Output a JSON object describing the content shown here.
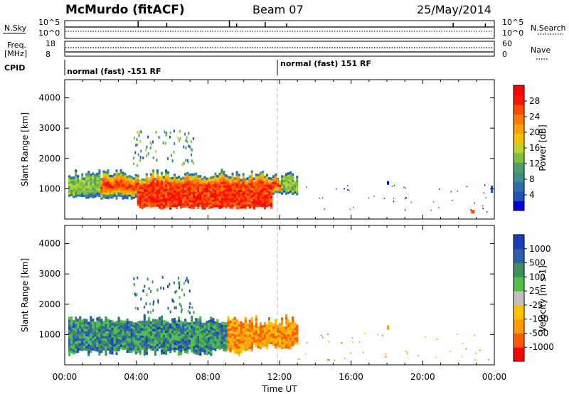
{
  "header": {
    "station": "McMurdo (fitACF)",
    "beam": "Beam 07",
    "date": "25/May/2014"
  },
  "status_panels": {
    "nsky_label": "N.Sky",
    "nsky_ticks": [
      "10^5",
      "10^0"
    ],
    "nsearch_label": "N.Search",
    "nsearch_ticks": [
      "10^5",
      "10^0"
    ],
    "freq_label": "Freq.",
    "freq_unit": "[MHz]",
    "freq_ticks": [
      "18",
      "8"
    ],
    "nave_label": "Nave",
    "nave_ticks": [
      "60",
      "0"
    ],
    "cpid_label": "CPID",
    "cpid_segments": [
      {
        "start_hour": 0,
        "label": "normal (fast) -151 RF"
      },
      {
        "start_hour": 12,
        "label": "normal (fast) 151 RF"
      }
    ]
  },
  "chart_data": [
    {
      "type": "heatmap",
      "title": "",
      "xlabel": "",
      "ylabel": "Slant Range [km]",
      "xlim": [
        0,
        24
      ],
      "ylim": [
        0,
        4600
      ],
      "x_ticks": [
        "00:00",
        "04:00",
        "08:00",
        "12:00",
        "16:00",
        "20:00",
        "00:00"
      ],
      "y_ticks": [
        "1000",
        "2000",
        "3000",
        "4000"
      ],
      "colorbar": {
        "label": "Power [dB]",
        "ticks": [
          "28",
          "24",
          "20",
          "16",
          "12",
          "8",
          "4"
        ],
        "range": [
          0,
          30
        ],
        "colors": [
          "#0000dd",
          "#1d52c2",
          "#2f6ea6",
          "#3f8f86",
          "#4aa06c",
          "#7fbf3a",
          "#bcd42a",
          "#f5c000",
          "#ffa000",
          "#ff7a00",
          "#ff4a00",
          "#ff1400",
          "#ff0000"
        ]
      },
      "echo_regions": [
        {
          "t0": 0.2,
          "t1": 13.0,
          "r0": 700,
          "r1": 1600,
          "value": "12-20 dB band"
        },
        {
          "t0": 4.0,
          "t1": 11.5,
          "r0": 350,
          "r1": 1300,
          "value": "24-30 dB core"
        },
        {
          "t0": 3.8,
          "t1": 7.0,
          "r0": 1800,
          "r1": 2950,
          "value": "8-16 dB scattered"
        }
      ]
    },
    {
      "type": "heatmap",
      "title": "",
      "xlabel": "Time UT",
      "ylabel": "Slant Range [km]",
      "xlim": [
        0,
        24
      ],
      "ylim": [
        0,
        4600
      ],
      "x_ticks": [
        "00:00",
        "04:00",
        "08:00",
        "12:00",
        "16:00",
        "20:00",
        "00:00"
      ],
      "y_ticks": [
        "1000",
        "2000",
        "3000",
        "4000"
      ],
      "colorbar": {
        "label": "Velocity [m s-1]",
        "ticks": [
          "1000",
          "500",
          "100",
          "25",
          "-25",
          "-100",
          "-500",
          "-1000"
        ],
        "range": [
          -1000,
          1000
        ],
        "colors": [
          "#ff0000",
          "#ff5a00",
          "#ff9a00",
          "#ffc000",
          "#c0c0c0",
          "#4ec04a",
          "#3e8e5e",
          "#2c5faa",
          "#1a3fb8"
        ]
      },
      "echo_regions": [
        {
          "t0": 0.2,
          "t1": 9.0,
          "r0": 300,
          "r1": 1600,
          "value": "positive (green)"
        },
        {
          "t0": 9.0,
          "t1": 13.0,
          "r0": 400,
          "r1": 1500,
          "value": "negative (orange)"
        },
        {
          "t0": 3.8,
          "t1": 7.0,
          "r0": 1700,
          "r1": 2950,
          "value": "mixed"
        }
      ]
    }
  ],
  "colors": {
    "axis": "#000000",
    "dashed": "#aaaaaa"
  }
}
